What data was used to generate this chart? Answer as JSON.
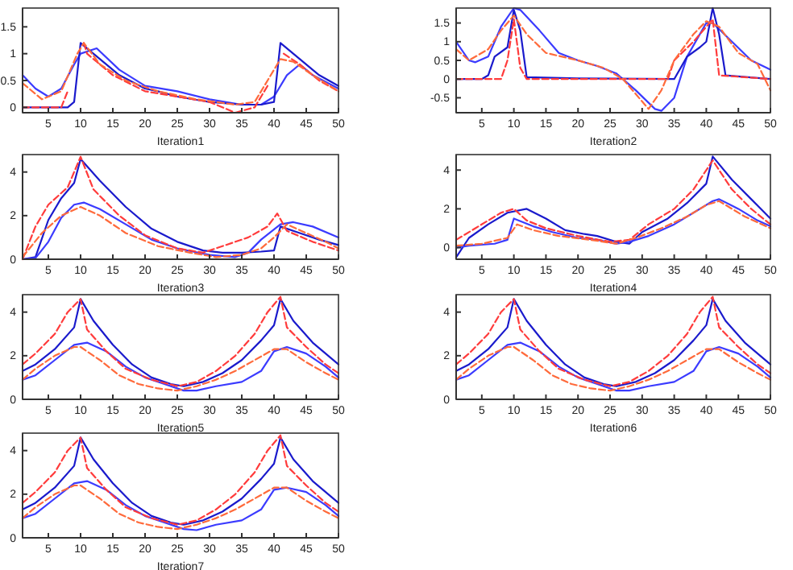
{
  "chart_data": [
    {
      "type": "line",
      "xlabel": "Iteration1",
      "xlim": [
        1,
        50
      ],
      "xticks": [
        5,
        10,
        15,
        20,
        25,
        30,
        35,
        40,
        45,
        50
      ],
      "ylim": [
        -0.1,
        1.85
      ],
      "yticks": [
        0,
        0.5,
        1,
        1.5
      ],
      "series": [
        {
          "color": "#3b3bff",
          "line_style": "solid",
          "x": [
            1,
            3,
            5,
            7,
            9,
            10,
            12.5,
            16,
            20,
            25,
            30,
            35,
            38,
            40,
            42,
            44,
            46,
            50
          ],
          "values": [
            0.6,
            0.35,
            0.2,
            0.35,
            0.8,
            1.0,
            1.1,
            0.7,
            0.4,
            0.3,
            0.15,
            0.05,
            0.05,
            0.2,
            0.6,
            0.8,
            0.6,
            0.35
          ]
        },
        {
          "color": "#1a1acc",
          "line_style": "solid",
          "x": [
            1,
            5,
            8,
            9,
            10,
            13,
            16,
            20,
            22,
            25,
            30,
            35,
            38,
            40,
            41,
            44,
            47,
            50
          ],
          "values": [
            0,
            0,
            0,
            0.1,
            1.2,
            0.9,
            0.6,
            0.35,
            0.3,
            0.2,
            0.1,
            0.05,
            0.05,
            0.1,
            1.2,
            0.9,
            0.6,
            0.4
          ]
        },
        {
          "color": "#ff3b3b",
          "line_style": "dashed",
          "x": [
            1,
            7,
            8,
            10,
            10.5,
            11,
            15,
            20,
            25,
            30,
            34,
            37,
            39,
            40,
            41.5,
            44,
            47,
            50
          ],
          "values": [
            0,
            0,
            0.3,
            null,
            1.2,
            1.0,
            0.6,
            0.3,
            0.2,
            0.1,
            -0.1,
            0,
            0.4,
            null,
            1.0,
            0.8,
            0.5,
            0.3
          ]
        },
        {
          "color": "#ff6a3b",
          "line_style": "dashed",
          "x": [
            1,
            4,
            7,
            9.5,
            10.5,
            13,
            17,
            22,
            28,
            34,
            37,
            41,
            43,
            46,
            50
          ],
          "values": [
            0.45,
            0.15,
            0.3,
            1.0,
            1.2,
            0.8,
            0.5,
            0.3,
            0.15,
            0.05,
            0.1,
            0.9,
            0.85,
            0.6,
            0.3
          ]
        }
      ]
    },
    {
      "type": "line",
      "xlabel": "Iteration2",
      "xlim": [
        1,
        50
      ],
      "xticks": [
        5,
        10,
        15,
        20,
        25,
        30,
        35,
        40,
        45,
        50
      ],
      "ylim": [
        -0.9,
        1.9
      ],
      "yticks": [
        -0.5,
        0,
        0.5,
        1,
        1.5
      ],
      "series": [
        {
          "color": "#3b3bff",
          "line_style": "solid",
          "x": [
            1,
            3,
            4,
            6,
            8,
            10,
            11,
            14,
            17,
            20,
            23,
            26,
            29,
            32,
            33,
            35,
            37,
            40,
            41,
            44,
            47,
            50
          ],
          "values": [
            1.0,
            0.5,
            0.45,
            0.6,
            1.4,
            1.9,
            1.85,
            1.3,
            0.7,
            0.5,
            0.35,
            0.15,
            -0.3,
            -0.8,
            -0.85,
            -0.5,
            0.6,
            1.5,
            1.5,
            1.0,
            0.5,
            0.25
          ]
        },
        {
          "color": "#1a1acc",
          "line_style": "solid",
          "x": [
            1,
            5,
            6,
            7,
            9,
            10,
            11,
            12,
            20,
            35,
            37,
            39,
            40,
            41,
            42,
            43,
            50
          ],
          "values": [
            0,
            0,
            0.1,
            0.6,
            0.85,
            1.85,
            1.3,
            0.05,
            0.02,
            0,
            0.6,
            0.85,
            1.0,
            1.9,
            1.2,
            0.1,
            0
          ]
        },
        {
          "color": "#ff3b3b",
          "line_style": "dashed",
          "x": [
            1,
            8,
            9,
            10,
            11,
            12,
            34,
            35,
            38,
            40,
            41,
            42,
            50
          ],
          "values": [
            0,
            0,
            0.5,
            1.6,
            0.3,
            0,
            0,
            0.5,
            1.0,
            1.4,
            1.6,
            0.1,
            0
          ]
        },
        {
          "color": "#ff6a3b",
          "line_style": "dashed",
          "x": [
            1,
            3,
            6,
            8,
            10,
            12,
            15,
            20,
            24,
            27,
            30,
            31,
            33,
            35,
            38,
            40,
            42,
            45,
            48,
            50
          ],
          "values": [
            0.8,
            0.5,
            0.8,
            1.3,
            1.7,
            1.2,
            0.7,
            0.5,
            0.3,
            0,
            -0.6,
            -0.8,
            -0.3,
            0.5,
            1.2,
            1.55,
            1.4,
            0.7,
            0.4,
            -0.3
          ]
        }
      ]
    },
    {
      "type": "line",
      "xlabel": "Iteration3",
      "xlim": [
        1,
        50
      ],
      "xticks": [
        5,
        10,
        15,
        20,
        25,
        30,
        35,
        40,
        45,
        50
      ],
      "ylim": [
        0,
        4.8
      ],
      "yticks": [
        0,
        2,
        4
      ],
      "series": [
        {
          "color": "#1a1acc",
          "line_style": "solid",
          "x": [
            1,
            3,
            5,
            7,
            9,
            10,
            13,
            17,
            21,
            25,
            29,
            32,
            35,
            38,
            40,
            41,
            44,
            47,
            50
          ],
          "values": [
            0,
            0.1,
            1.8,
            2.8,
            3.5,
            4.6,
            3.6,
            2.4,
            1.4,
            0.8,
            0.4,
            0.3,
            0.3,
            0.35,
            0.4,
            1.5,
            1.2,
            0.9,
            0.65
          ]
        },
        {
          "color": "#3b3bff",
          "line_style": "solid",
          "x": [
            1,
            3,
            5,
            7,
            9,
            10.5,
            13,
            17,
            21,
            25,
            30,
            34,
            36,
            38,
            41,
            43,
            46,
            50
          ],
          "values": [
            0,
            0.05,
            0.8,
            1.9,
            2.5,
            2.6,
            2.3,
            1.6,
            0.9,
            0.5,
            0.2,
            0.1,
            0.3,
            0.9,
            1.6,
            1.7,
            1.5,
            1.0
          ]
        },
        {
          "color": "#ff3b3b",
          "line_style": "dashed",
          "x": [
            1,
            3,
            5,
            8,
            10,
            12,
            16,
            20,
            25,
            29,
            32,
            36,
            39,
            40.5,
            42,
            46,
            50
          ],
          "values": [
            0,
            1.5,
            2.5,
            3.3,
            4.7,
            3.2,
            2.0,
            1.1,
            0.5,
            0.3,
            0.6,
            1.0,
            1.5,
            2.1,
            1.3,
            0.8,
            0.4
          ]
        },
        {
          "color": "#ff6a3b",
          "line_style": "dashed",
          "x": [
            1,
            4,
            7,
            10,
            13,
            17,
            22,
            27,
            31,
            35,
            38,
            40,
            42,
            45,
            48,
            50
          ],
          "values": [
            0.1,
            1.2,
            2.0,
            2.4,
            2.0,
            1.2,
            0.6,
            0.3,
            0.1,
            0.2,
            0.5,
            1.0,
            1.6,
            1.2,
            0.8,
            0.5
          ]
        }
      ]
    },
    {
      "type": "line",
      "xlabel": "Iteration4",
      "xlim": [
        1,
        50
      ],
      "xticks": [
        5,
        10,
        15,
        20,
        25,
        30,
        35,
        40,
        45,
        50
      ],
      "ylim": [
        -0.6,
        4.8
      ],
      "yticks": [
        0,
        2,
        4
      ],
      "series": [
        {
          "color": "#1a1acc",
          "line_style": "solid",
          "x": [
            1,
            3,
            6,
            9,
            12,
            15,
            18,
            21,
            23,
            26,
            28,
            30,
            34,
            37,
            40,
            41,
            44,
            47,
            50
          ],
          "values": [
            -0.5,
            0.5,
            1.2,
            1.8,
            2.0,
            1.5,
            0.9,
            0.7,
            0.6,
            0.3,
            0.2,
            0.8,
            1.5,
            2.3,
            3.3,
            4.7,
            3.5,
            2.5,
            1.5
          ]
        },
        {
          "color": "#3b3bff",
          "line_style": "solid",
          "x": [
            1,
            3,
            7,
            9,
            10,
            13,
            16,
            20,
            23,
            26,
            28,
            31,
            35,
            38,
            41,
            42,
            45,
            48,
            50
          ],
          "values": [
            0,
            0.1,
            0.2,
            0.4,
            1.5,
            1.1,
            0.8,
            0.5,
            0.4,
            0.2,
            0.3,
            0.6,
            1.2,
            1.8,
            2.4,
            2.5,
            2.0,
            1.4,
            1.1
          ]
        },
        {
          "color": "#ff3b3b",
          "line_style": "dashed",
          "x": [
            1,
            4,
            8,
            10,
            12,
            15,
            20,
            25,
            28,
            31,
            35,
            38,
            41,
            44,
            47,
            50
          ],
          "values": [
            0.4,
            1.0,
            1.8,
            2.0,
            1.4,
            1.0,
            0.6,
            0.3,
            0.4,
            1.2,
            2.0,
            3.0,
            4.5,
            3.0,
            2.0,
            1.2
          ]
        },
        {
          "color": "#ff6a3b",
          "line_style": "dashed",
          "x": [
            1,
            5,
            9,
            10.5,
            13,
            17,
            22,
            26,
            29,
            33,
            37,
            40,
            42,
            46,
            50
          ],
          "values": [
            0.1,
            0.2,
            0.5,
            1.2,
            0.9,
            0.6,
            0.4,
            0.2,
            0.5,
            1.0,
            1.6,
            2.2,
            2.4,
            1.6,
            1.0
          ]
        }
      ]
    },
    {
      "type": "line",
      "xlabel": "Iteration5",
      "xlim": [
        1,
        50
      ],
      "xticks": [
        5,
        10,
        15,
        20,
        25,
        30,
        35,
        40,
        45,
        50
      ],
      "ylim": [
        0,
        4.8
      ],
      "yticks": [
        0,
        2,
        4
      ],
      "series": [
        {
          "color": "#1a1acc",
          "line_style": "solid",
          "x": [
            1,
            3,
            6,
            9,
            10,
            12,
            15,
            18,
            21,
            24,
            26,
            29,
            32,
            35,
            38,
            40,
            41,
            43,
            46,
            50
          ],
          "values": [
            1.3,
            1.6,
            2.3,
            3.3,
            4.6,
            3.6,
            2.5,
            1.6,
            1.0,
            0.7,
            0.6,
            0.8,
            1.2,
            1.8,
            2.7,
            3.4,
            4.6,
            3.6,
            2.6,
            1.6
          ]
        },
        {
          "color": "#3b3bff",
          "line_style": "solid",
          "x": [
            1,
            3,
            6,
            9,
            11,
            14,
            17,
            20,
            23,
            26,
            28,
            31,
            35,
            38,
            40,
            42,
            45,
            48,
            50
          ],
          "values": [
            0.9,
            1.1,
            1.8,
            2.5,
            2.6,
            2.2,
            1.5,
            1.0,
            0.7,
            0.4,
            0.4,
            0.6,
            0.8,
            1.3,
            2.2,
            2.4,
            2.1,
            1.5,
            1.0
          ]
        },
        {
          "color": "#ff3b3b",
          "line_style": "dashed",
          "x": [
            1,
            3,
            6,
            8,
            10,
            11,
            14,
            17,
            21,
            25,
            28,
            31,
            34,
            37,
            39,
            41,
            42,
            45,
            48,
            50
          ],
          "values": [
            1.6,
            2.1,
            3.0,
            4.0,
            4.6,
            3.2,
            2.2,
            1.4,
            0.9,
            0.6,
            0.8,
            1.3,
            2.0,
            3.0,
            4.0,
            4.7,
            3.3,
            2.4,
            1.6,
            1.2
          ]
        },
        {
          "color": "#ff6a3b",
          "line_style": "dashed",
          "x": [
            1,
            3,
            6,
            9,
            10,
            13,
            16,
            19,
            22,
            25,
            28,
            31,
            34,
            37,
            40,
            42,
            45,
            48,
            50
          ],
          "values": [
            0.9,
            1.4,
            2.0,
            2.4,
            2.4,
            1.8,
            1.1,
            0.7,
            0.5,
            0.4,
            0.6,
            0.9,
            1.3,
            1.8,
            2.3,
            2.3,
            1.7,
            1.2,
            0.9
          ]
        }
      ]
    },
    {
      "type": "line",
      "xlabel": "Iteration6",
      "xlim": [
        1,
        50
      ],
      "xticks": [
        5,
        10,
        15,
        20,
        25,
        30,
        35,
        40,
        45,
        50
      ],
      "ylim": [
        0,
        4.8
      ],
      "yticks": [
        0,
        2,
        4
      ],
      "series": [
        {
          "color": "#1a1acc",
          "line_style": "solid",
          "x": [
            1,
            3,
            6,
            9,
            10,
            12,
            15,
            18,
            21,
            24,
            26,
            29,
            32,
            35,
            38,
            40,
            41,
            43,
            46,
            50
          ],
          "values": [
            1.3,
            1.6,
            2.3,
            3.3,
            4.6,
            3.6,
            2.5,
            1.6,
            1.0,
            0.7,
            0.6,
            0.8,
            1.2,
            1.8,
            2.7,
            3.4,
            4.6,
            3.6,
            2.6,
            1.6
          ]
        },
        {
          "color": "#3b3bff",
          "line_style": "solid",
          "x": [
            1,
            3,
            6,
            9,
            11,
            14,
            17,
            20,
            23,
            26,
            28,
            31,
            35,
            38,
            40,
            42,
            45,
            48,
            50
          ],
          "values": [
            0.9,
            1.1,
            1.8,
            2.5,
            2.6,
            2.2,
            1.5,
            1.0,
            0.7,
            0.4,
            0.4,
            0.6,
            0.8,
            1.3,
            2.2,
            2.4,
            2.1,
            1.5,
            1.0
          ]
        },
        {
          "color": "#ff3b3b",
          "line_style": "dashed",
          "x": [
            1,
            3,
            6,
            8,
            10,
            11,
            14,
            17,
            21,
            25,
            28,
            31,
            34,
            37,
            39,
            41,
            42,
            45,
            48,
            50
          ],
          "values": [
            1.6,
            2.1,
            3.0,
            4.0,
            4.6,
            3.2,
            2.2,
            1.4,
            0.9,
            0.6,
            0.8,
            1.3,
            2.0,
            3.0,
            4.0,
            4.7,
            3.3,
            2.4,
            1.6,
            1.2
          ]
        },
        {
          "color": "#ff6a3b",
          "line_style": "dashed",
          "x": [
            1,
            3,
            6,
            9,
            10,
            13,
            16,
            19,
            22,
            25,
            28,
            31,
            34,
            37,
            40,
            42,
            45,
            48,
            50
          ],
          "values": [
            0.9,
            1.4,
            2.0,
            2.4,
            2.4,
            1.8,
            1.1,
            0.7,
            0.5,
            0.4,
            0.6,
            0.9,
            1.3,
            1.8,
            2.3,
            2.3,
            1.7,
            1.2,
            0.9
          ]
        }
      ]
    },
    {
      "type": "line",
      "xlabel": "Iteration7",
      "xlim": [
        1,
        50
      ],
      "xticks": [
        5,
        10,
        15,
        20,
        25,
        30,
        35,
        40,
        45,
        50
      ],
      "ylim": [
        0,
        4.8
      ],
      "yticks": [
        0,
        2,
        4
      ],
      "series": [
        {
          "color": "#1a1acc",
          "line_style": "solid",
          "x": [
            1,
            3,
            6,
            9,
            10,
            12,
            15,
            18,
            21,
            24,
            26,
            29,
            32,
            35,
            38,
            40,
            41,
            43,
            46,
            50
          ],
          "values": [
            1.3,
            1.6,
            2.3,
            3.3,
            4.6,
            3.6,
            2.5,
            1.6,
            1.0,
            0.7,
            0.6,
            0.8,
            1.2,
            1.8,
            2.7,
            3.4,
            4.6,
            3.6,
            2.6,
            1.6
          ]
        },
        {
          "color": "#3b3bff",
          "line_style": "solid",
          "x": [
            1,
            3,
            6,
            9,
            11,
            14,
            17,
            20,
            23,
            26,
            28,
            31,
            35,
            38,
            40,
            42,
            45,
            48,
            50
          ],
          "values": [
            0.9,
            1.1,
            1.8,
            2.5,
            2.6,
            2.2,
            1.5,
            1.0,
            0.7,
            0.4,
            0.35,
            0.6,
            0.8,
            1.3,
            2.2,
            2.3,
            2.1,
            1.5,
            1.0
          ]
        },
        {
          "color": "#ff3b3b",
          "line_style": "dashed",
          "x": [
            1,
            3,
            6,
            8,
            10,
            11,
            14,
            17,
            21,
            25,
            28,
            31,
            34,
            37,
            39,
            41,
            42,
            45,
            48,
            50
          ],
          "values": [
            1.6,
            2.1,
            3.0,
            4.0,
            4.6,
            3.2,
            2.2,
            1.4,
            0.9,
            0.6,
            0.8,
            1.3,
            2.0,
            3.0,
            4.0,
            4.7,
            3.3,
            2.4,
            1.6,
            1.2
          ]
        },
        {
          "color": "#ff6a3b",
          "line_style": "dashed",
          "x": [
            1,
            3,
            6,
            9,
            10,
            13,
            16,
            19,
            22,
            25,
            28,
            31,
            34,
            37,
            40,
            42,
            45,
            48,
            50
          ],
          "values": [
            0.9,
            1.4,
            2.0,
            2.4,
            2.4,
            1.8,
            1.1,
            0.7,
            0.5,
            0.4,
            0.6,
            0.9,
            1.3,
            1.8,
            2.3,
            2.3,
            1.7,
            1.2,
            0.9
          ]
        }
      ]
    }
  ]
}
